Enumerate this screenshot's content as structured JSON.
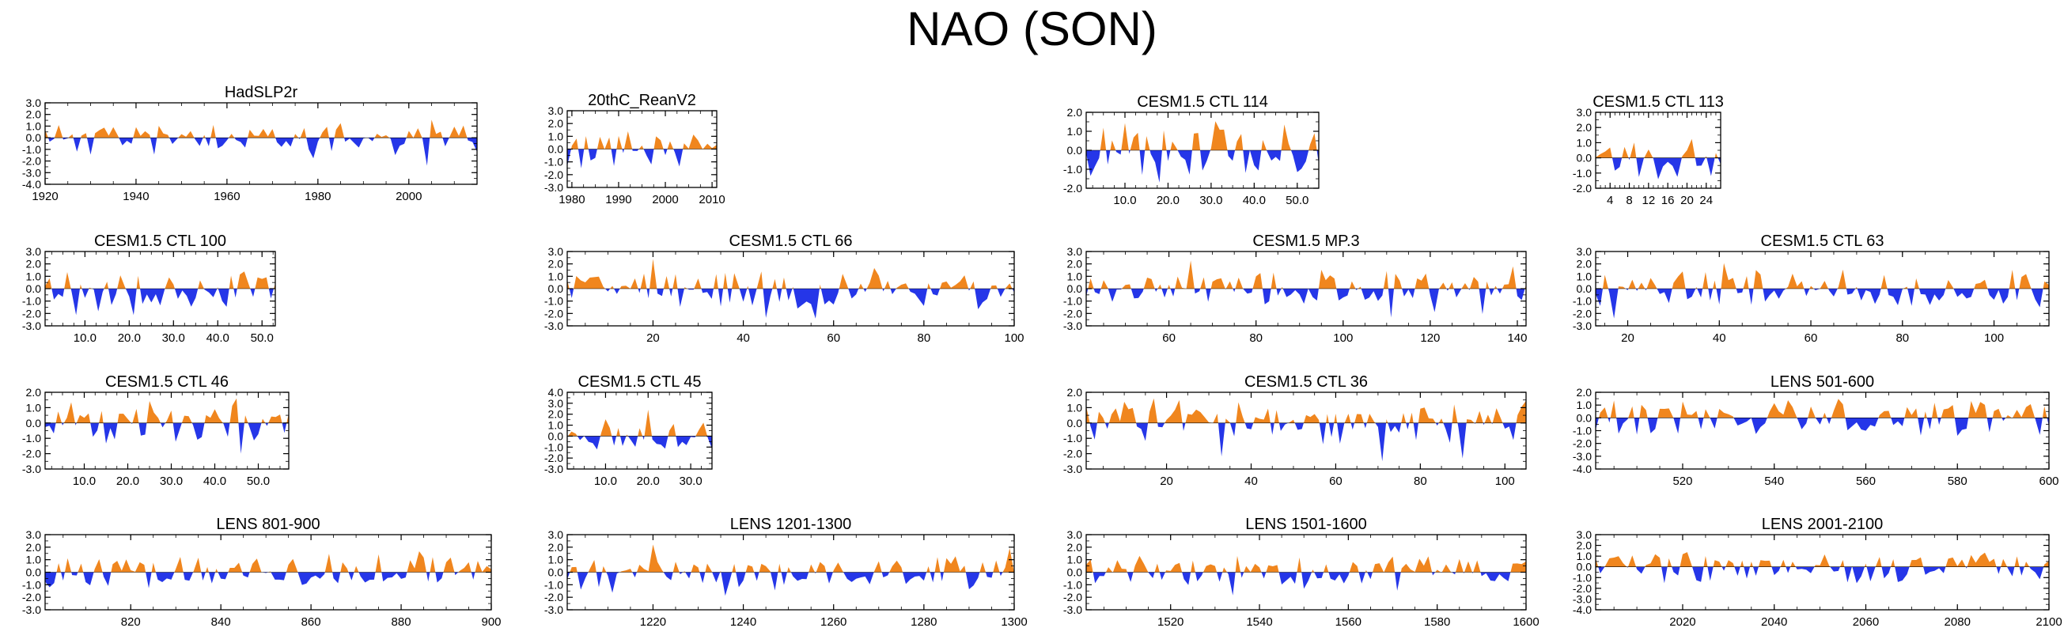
{
  "figure": {
    "title": "NAO (SON)"
  },
  "colors": {
    "positive": "#f0861e",
    "negative": "#2536e8",
    "axis": "#000000"
  },
  "chart_data": [
    {
      "type": "area",
      "title": "HadSLP2r",
      "x_start": 1920,
      "n": 96,
      "ylim": [
        -4,
        3
      ],
      "yticks": [
        "3.0",
        "2.0",
        "1.0",
        "0.0",
        "-1.0",
        "-2.0",
        "-3.0",
        "-4.0"
      ],
      "ytick_values": [
        3,
        2,
        1,
        0,
        -1,
        -2,
        -3,
        -4
      ],
      "xticks": [
        "1920",
        "1940",
        "1960",
        "1980",
        "2000"
      ],
      "xtick_values": [
        1920,
        1940,
        1960,
        1980,
        2000
      ],
      "seed": 11
    },
    {
      "type": "area",
      "title": "20thC_ReanV2",
      "x_start": 1979,
      "n": 33,
      "ylim": [
        -3,
        3
      ],
      "yticks": [
        "3.0",
        "2.0",
        "1.0",
        "0.0",
        "-1.0",
        "-2.0",
        "-3.0"
      ],
      "ytick_values": [
        3,
        2,
        1,
        0,
        -1,
        -2,
        -3
      ],
      "xticks": [
        "1980",
        "1990",
        "2000",
        "2010"
      ],
      "xtick_values": [
        1980,
        1990,
        2000,
        2010
      ],
      "seed": 22
    },
    {
      "type": "area",
      "title": "CESM1.5 CTL 114",
      "x_start": 1,
      "n": 55,
      "ylim": [
        -2,
        2
      ],
      "yticks": [
        "2.0",
        "1.0",
        "0.0",
        "-1.0",
        "-2.0"
      ],
      "ytick_values": [
        2,
        1,
        0,
        -1,
        -2
      ],
      "xticks": [
        "10.0",
        "20.0",
        "30.0",
        "40.0",
        "50.0"
      ],
      "xtick_values": [
        10,
        20,
        30,
        40,
        50
      ],
      "seed": 33
    },
    {
      "type": "area",
      "title": "CESM1.5 CTL 113",
      "x_start": 1,
      "n": 27,
      "ylim": [
        -2,
        3
      ],
      "yticks": [
        "3.0",
        "2.0",
        "1.0",
        "0.0",
        "-1.0",
        "-2.0"
      ],
      "ytick_values": [
        3,
        2,
        1,
        0,
        -1,
        -2
      ],
      "xticks": [
        "4",
        "8",
        "12",
        "16",
        "20",
        "24"
      ],
      "xtick_values": [
        4,
        8,
        12,
        16,
        20,
        24
      ],
      "seed": 44
    },
    {
      "type": "area",
      "title": "CESM1.5 CTL 100",
      "x_start": 1,
      "n": 53,
      "ylim": [
        -3,
        3
      ],
      "yticks": [
        "3.0",
        "2.0",
        "1.0",
        "0.0",
        "-1.0",
        "-2.0",
        "-3.0"
      ],
      "ytick_values": [
        3,
        2,
        1,
        0,
        -1,
        -2,
        -3
      ],
      "xticks": [
        "10.0",
        "20.0",
        "30.0",
        "40.0",
        "50.0"
      ],
      "xtick_values": [
        10,
        20,
        30,
        40,
        50
      ],
      "seed": 55
    },
    {
      "type": "area",
      "title": "CESM1.5 CTL 66",
      "x_start": 1,
      "n": 100,
      "ylim": [
        -3,
        3
      ],
      "yticks": [
        "3.0",
        "2.0",
        "1.0",
        "0.0",
        "-1.0",
        "-2.0",
        "-3.0"
      ],
      "ytick_values": [
        3,
        2,
        1,
        0,
        -1,
        -2,
        -3
      ],
      "xticks": [
        "20",
        "40",
        "60",
        "80",
        "100"
      ],
      "xtick_values": [
        20,
        40,
        60,
        80,
        100
      ],
      "seed": 66
    },
    {
      "type": "area",
      "title": "CESM1.5 MP.3",
      "x_start": 41,
      "n": 102,
      "ylim": [
        -3,
        3
      ],
      "yticks": [
        "3.0",
        "2.0",
        "1.0",
        "0.0",
        "-1.0",
        "-2.0",
        "-3.0"
      ],
      "ytick_values": [
        3,
        2,
        1,
        0,
        -1,
        -2,
        -3
      ],
      "xticks": [
        "60",
        "80",
        "100",
        "120",
        "140"
      ],
      "xtick_values": [
        60,
        80,
        100,
        120,
        140
      ],
      "seed": 77
    },
    {
      "type": "area",
      "title": "CESM1.5 CTL 63",
      "x_start": 13,
      "n": 100,
      "ylim": [
        -3,
        3
      ],
      "yticks": [
        "3.0",
        "2.0",
        "1.0",
        "0.0",
        "-1.0",
        "-2.0",
        "-3.0"
      ],
      "ytick_values": [
        3,
        2,
        1,
        0,
        -1,
        -2,
        -3
      ],
      "xticks": [
        "20",
        "40",
        "60",
        "80",
        "100"
      ],
      "xtick_values": [
        20,
        40,
        60,
        80,
        100
      ],
      "seed": 88
    },
    {
      "type": "area",
      "title": "CESM1.5 CTL 46",
      "x_start": 1,
      "n": 57,
      "ylim": [
        -3,
        2
      ],
      "yticks": [
        "2.0",
        "1.0",
        "0.0",
        "-1.0",
        "-2.0",
        "-3.0"
      ],
      "ytick_values": [
        2,
        1,
        0,
        -1,
        -2,
        -3
      ],
      "xticks": [
        "10.0",
        "20.0",
        "30.0",
        "40.0",
        "50.0"
      ],
      "xtick_values": [
        10,
        20,
        30,
        40,
        50
      ],
      "seed": 99
    },
    {
      "type": "area",
      "title": "CESM1.5 CTL 45",
      "x_start": 1,
      "n": 35,
      "ylim": [
        -3,
        4
      ],
      "yticks": [
        "4.0",
        "3.0",
        "2.0",
        "1.0",
        "0.0",
        "-1.0",
        "-2.0",
        "-3.0"
      ],
      "ytick_values": [
        4,
        3,
        2,
        1,
        0,
        -1,
        -2,
        -3
      ],
      "xticks": [
        "10.0",
        "20.0",
        "30.0"
      ],
      "xtick_values": [
        10,
        20,
        30
      ],
      "seed": 110
    },
    {
      "type": "area",
      "title": "CESM1.5 CTL 36",
      "x_start": 1,
      "n": 105,
      "ylim": [
        -3,
        2
      ],
      "yticks": [
        "2.0",
        "1.0",
        "0.0",
        "-1.0",
        "-2.0",
        "-3.0"
      ],
      "ytick_values": [
        2,
        1,
        0,
        -1,
        -2,
        -3
      ],
      "xticks": [
        "20",
        "40",
        "60",
        "80",
        "100"
      ],
      "xtick_values": [
        20,
        40,
        60,
        80,
        100
      ],
      "seed": 121
    },
    {
      "type": "area",
      "title": "LENS 501-600",
      "x_start": 501,
      "n": 100,
      "ylim": [
        -4,
        2
      ],
      "yticks": [
        "2.0",
        "1.0",
        "0.0",
        "-1.0",
        "-2.0",
        "-3.0",
        "-4.0"
      ],
      "ytick_values": [
        2,
        1,
        0,
        -1,
        -2,
        -3,
        -4
      ],
      "xticks": [
        "520",
        "540",
        "560",
        "580",
        "600"
      ],
      "xtick_values": [
        520,
        540,
        560,
        580,
        600
      ],
      "seed": 132
    },
    {
      "type": "area",
      "title": "LENS 801-900",
      "x_start": 801,
      "n": 100,
      "ylim": [
        -3,
        3
      ],
      "yticks": [
        "3.0",
        "2.0",
        "1.0",
        "0.0",
        "-1.0",
        "-2.0",
        "-3.0"
      ],
      "ytick_values": [
        3,
        2,
        1,
        0,
        -1,
        -2,
        -3
      ],
      "xticks": [
        "820",
        "840",
        "860",
        "880",
        "900"
      ],
      "xtick_values": [
        820,
        840,
        860,
        880,
        900
      ],
      "seed": 143
    },
    {
      "type": "area",
      "title": "LENS 1201-1300",
      "x_start": 1201,
      "n": 100,
      "ylim": [
        -3,
        3
      ],
      "yticks": [
        "3.0",
        "2.0",
        "1.0",
        "0.0",
        "-1.0",
        "-2.0",
        "-3.0"
      ],
      "ytick_values": [
        3,
        2,
        1,
        0,
        -1,
        -2,
        -3
      ],
      "xticks": [
        "1220",
        "1240",
        "1260",
        "1280",
        "1300"
      ],
      "xtick_values": [
        1220,
        1240,
        1260,
        1280,
        1300
      ],
      "seed": 154
    },
    {
      "type": "area",
      "title": "LENS 1501-1600",
      "x_start": 1501,
      "n": 100,
      "ylim": [
        -3,
        3
      ],
      "yticks": [
        "3.0",
        "2.0",
        "1.0",
        "0.0",
        "-1.0",
        "-2.0",
        "-3.0"
      ],
      "ytick_values": [
        3,
        2,
        1,
        0,
        -1,
        -2,
        -3
      ],
      "xticks": [
        "1520",
        "1540",
        "1560",
        "1580",
        "1600"
      ],
      "xtick_values": [
        1520,
        1540,
        1560,
        1580,
        1600
      ],
      "seed": 165
    },
    {
      "type": "area",
      "title": "LENS 2001-2100",
      "x_start": 2001,
      "n": 100,
      "ylim": [
        -4,
        3
      ],
      "yticks": [
        "3.0",
        "2.0",
        "1.0",
        "0.0",
        "-1.0",
        "-2.0",
        "-3.0",
        "-4.0"
      ],
      "ytick_values": [
        3,
        2,
        1,
        0,
        -1,
        -2,
        -3,
        -4
      ],
      "xticks": [
        "2020",
        "2040",
        "2060",
        "2080",
        "2100"
      ],
      "xtick_values": [
        2020,
        2040,
        2060,
        2080,
        2100
      ],
      "seed": 176
    }
  ]
}
